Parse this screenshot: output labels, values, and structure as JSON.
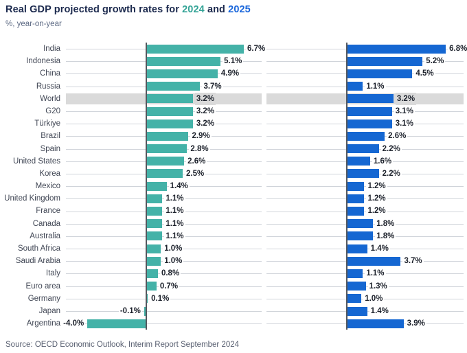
{
  "title": {
    "prefix": "Real GDP projected growth rates for ",
    "year1": "2024",
    "conjunction": " and ",
    "year2": "2025"
  },
  "subtitle": "%, year-on-year",
  "source": "Source: OECD Economic Outlook, Interim Report September 2024",
  "colors": {
    "series_2024": "#44B2A8",
    "series_2025": "#1567D2",
    "title_year_2024": "#33A396",
    "title_year_2025": "#1966DB",
    "highlight_band": "#dadada",
    "gridline": "#d0d4da",
    "axis": "#54585e"
  },
  "chart_data": {
    "type": "bar",
    "orientation": "horizontal",
    "title": "Real GDP projected growth rates for 2024 and 2025",
    "subtitle": "%, year-on-year",
    "value_suffix": "%",
    "xlim": [
      -5.5,
      8.1
    ],
    "grid": true,
    "legend_position": "in-title",
    "highlighted_category": "World",
    "categories": [
      "India",
      "Indonesia",
      "China",
      "Russia",
      "World",
      "G20",
      "Türkiye",
      "Brazil",
      "Spain",
      "United States",
      "Korea",
      "Mexico",
      "United Kingdom",
      "France",
      "Canada",
      "Australia",
      "South Africa",
      "Saudi Arabia",
      "Italy",
      "Euro area",
      "Germany",
      "Japan",
      "Argentina"
    ],
    "series": [
      {
        "name": "2024",
        "color": "#44B2A8",
        "values": [
          6.7,
          5.1,
          4.9,
          3.7,
          3.2,
          3.2,
          3.2,
          2.9,
          2.8,
          2.6,
          2.5,
          1.4,
          1.1,
          1.1,
          1.1,
          1.1,
          1.0,
          1.0,
          0.8,
          0.7,
          0.1,
          -0.1,
          -4.0
        ]
      },
      {
        "name": "2025",
        "color": "#1567D2",
        "values": [
          6.8,
          5.2,
          4.5,
          1.1,
          3.2,
          3.1,
          3.1,
          2.6,
          2.2,
          1.6,
          2.2,
          1.2,
          1.2,
          1.2,
          1.8,
          1.8,
          1.4,
          3.7,
          1.1,
          1.3,
          1.0,
          1.4,
          3.9
        ]
      }
    ]
  }
}
